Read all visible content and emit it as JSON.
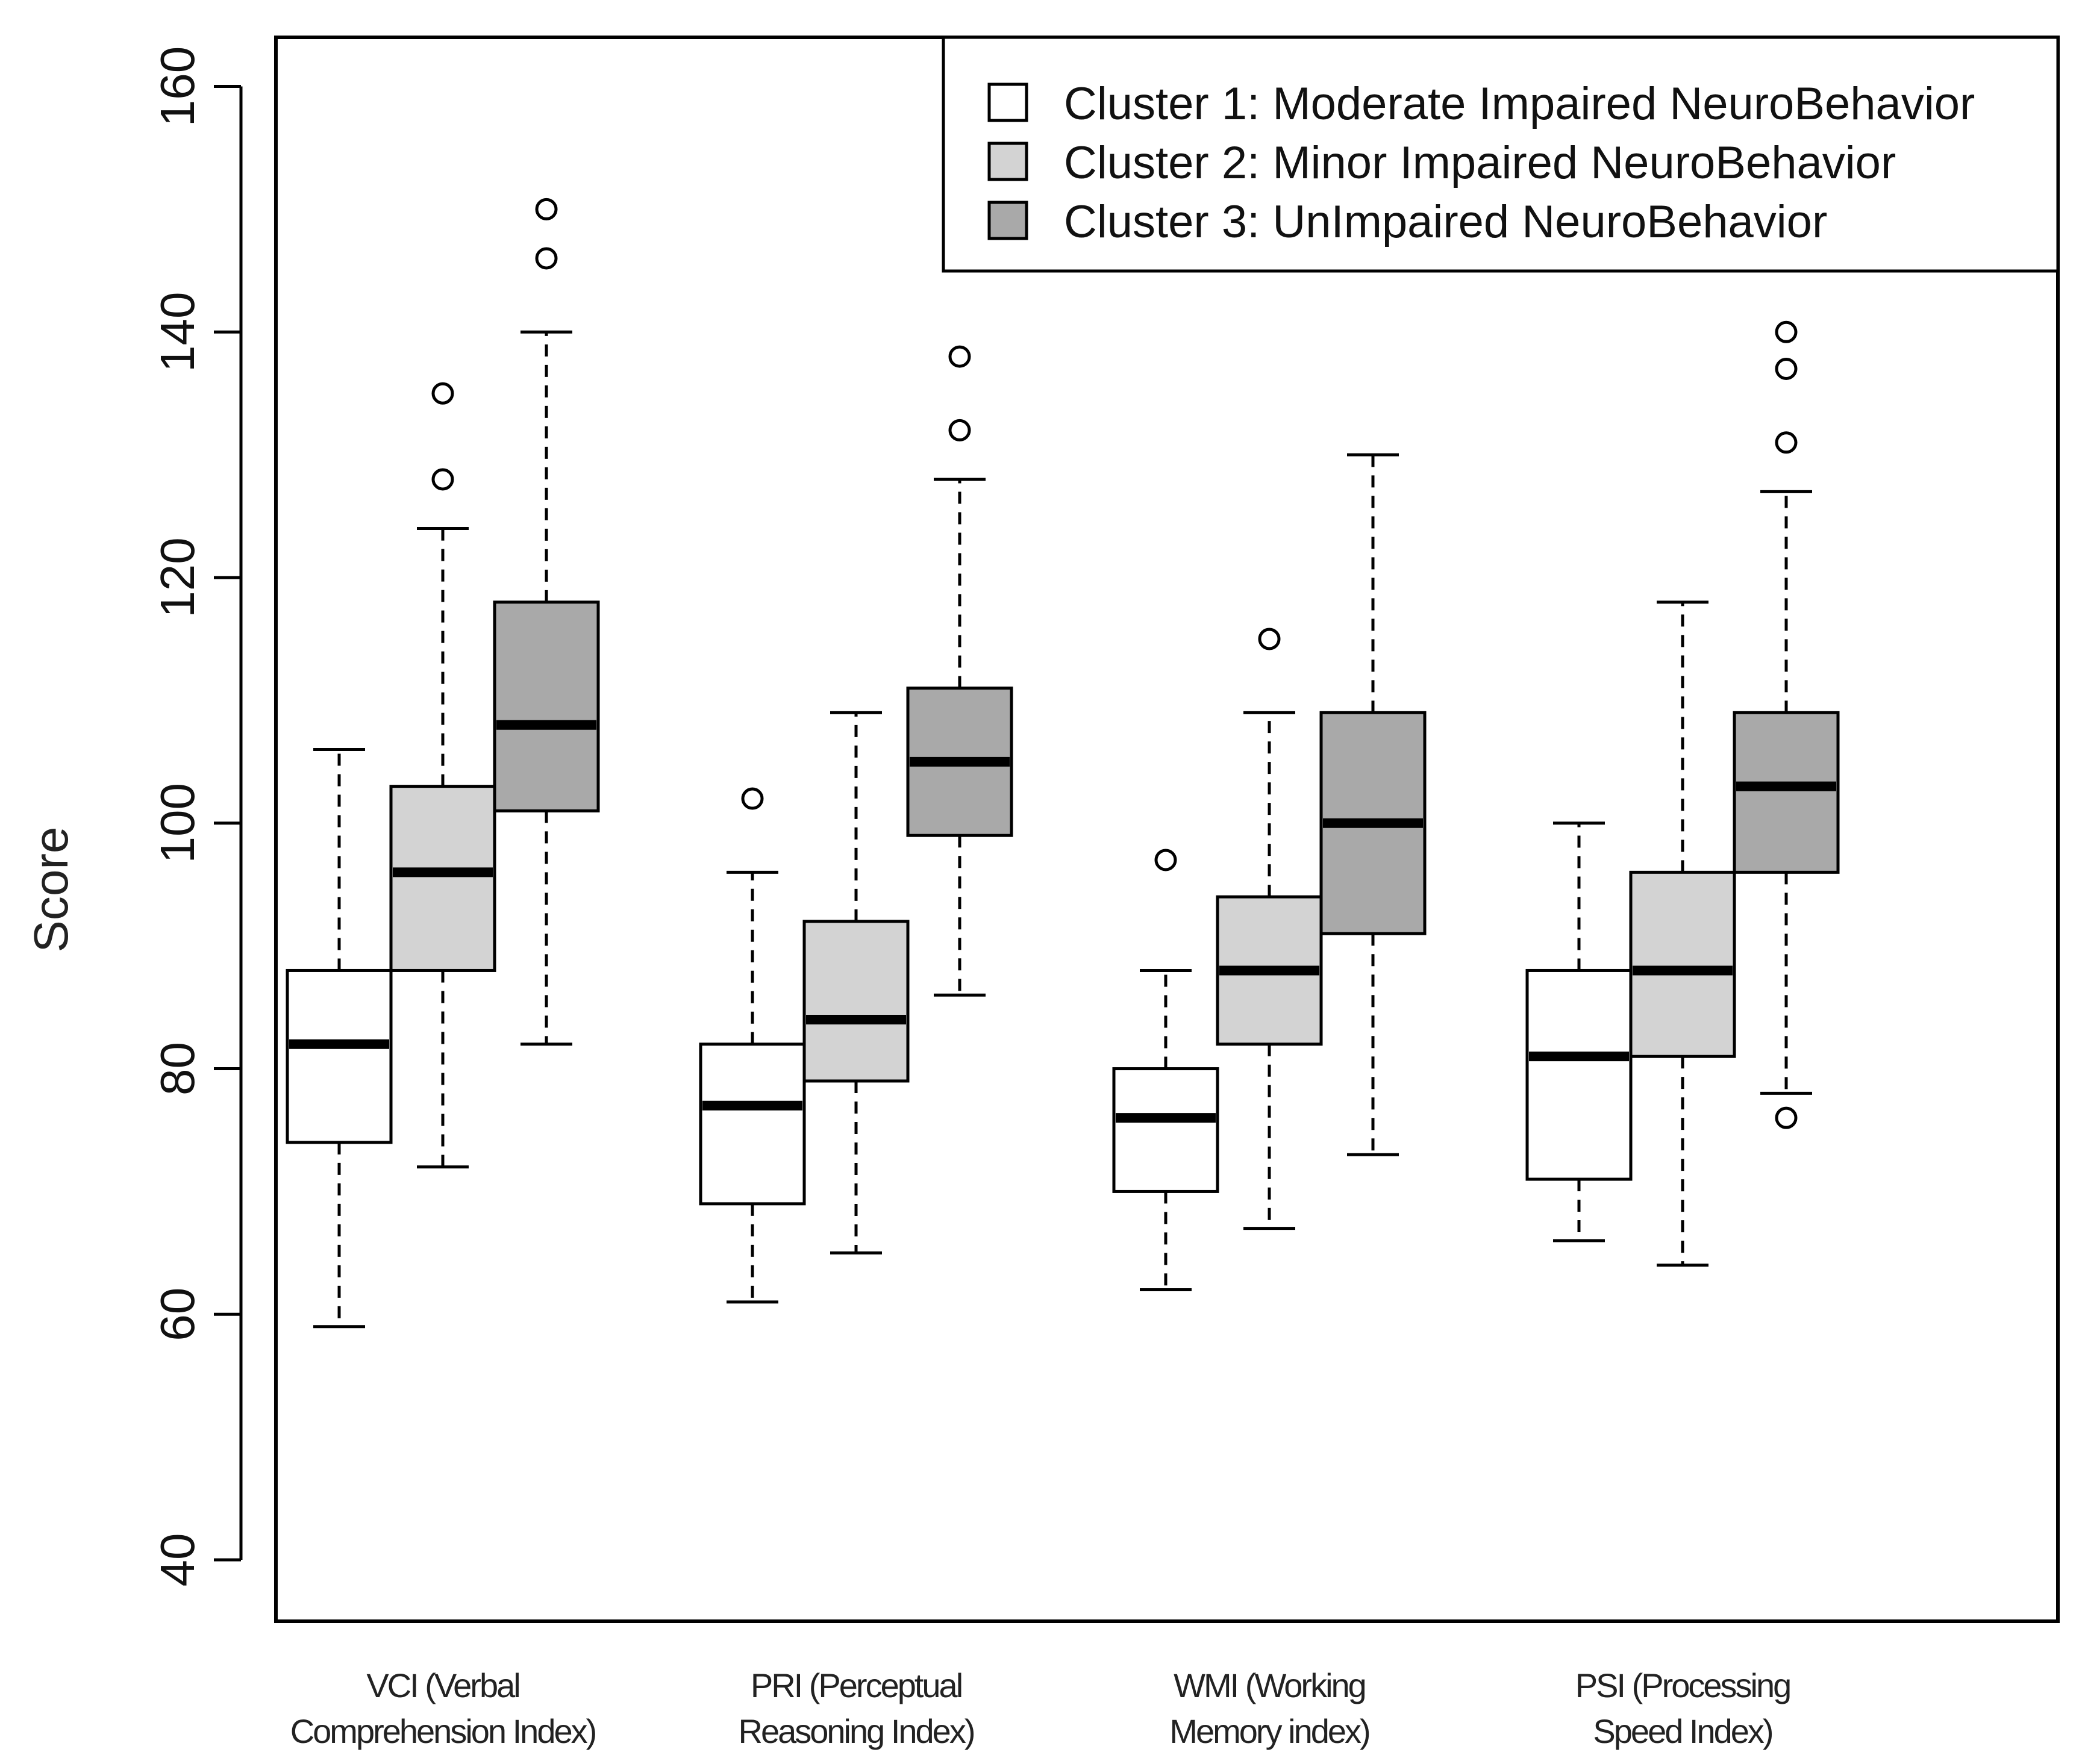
{
  "chart_data": {
    "type": "boxplot",
    "title": "",
    "xlabel": "",
    "ylabel": "Score",
    "ylim": [
      35,
      164
    ],
    "yticks": [
      40,
      60,
      80,
      100,
      120,
      140,
      160
    ],
    "grid": false,
    "legend_position": "top-right",
    "categories": [
      {
        "line1": "VCI (Verbal",
        "line2": "Comprehension Index)"
      },
      {
        "line1": "PRI (Perceptual",
        "line2": "Reasoning Index)"
      },
      {
        "line1": "WMI (Working",
        "line2": "Memory index)"
      },
      {
        "line1": "PSI (Processing",
        "line2": "Speed Index)"
      }
    ],
    "series": [
      {
        "name": "Cluster 1: Moderate Impaired NeuroBehavior",
        "color": "#ffffff",
        "boxes": [
          {
            "whisker_low": 59,
            "q1": 74,
            "median": 82,
            "q3": 88,
            "whisker_high": 106,
            "outliers": []
          },
          {
            "whisker_low": 61,
            "q1": 69,
            "median": 77,
            "q3": 82,
            "whisker_high": 96,
            "outliers": [
              102
            ]
          },
          {
            "whisker_low": 62,
            "q1": 70,
            "median": 76,
            "q3": 80,
            "whisker_high": 88,
            "outliers": [
              97
            ]
          },
          {
            "whisker_low": 66,
            "q1": 71,
            "median": 81,
            "q3": 88,
            "whisker_high": 100,
            "outliers": []
          }
        ]
      },
      {
        "name": "Cluster 2: Minor Impaired NeuroBehavior",
        "color": "#d3d3d3",
        "boxes": [
          {
            "whisker_low": 72,
            "q1": 88,
            "median": 96,
            "q3": 103,
            "whisker_high": 124,
            "outliers": [
              128,
              135
            ]
          },
          {
            "whisker_low": 65,
            "q1": 79,
            "median": 84,
            "q3": 92,
            "whisker_high": 109,
            "outliers": []
          },
          {
            "whisker_low": 67,
            "q1": 82,
            "median": 88,
            "q3": 94,
            "whisker_high": 109,
            "outliers": [
              115
            ]
          },
          {
            "whisker_low": 64,
            "q1": 81,
            "median": 88,
            "q3": 96,
            "whisker_high": 118,
            "outliers": []
          }
        ]
      },
      {
        "name": "Cluster 3: UnImpaired NeuroBehavior",
        "color": "#a9a9a9",
        "boxes": [
          {
            "whisker_low": 82,
            "q1": 101,
            "median": 108,
            "q3": 118,
            "whisker_high": 140,
            "outliers": [
              146,
              150
            ]
          },
          {
            "whisker_low": 86,
            "q1": 99,
            "median": 105,
            "q3": 111,
            "whisker_high": 128,
            "outliers": [
              132,
              138
            ]
          },
          {
            "whisker_low": 73,
            "q1": 91,
            "median": 100,
            "q3": 109,
            "whisker_high": 130,
            "outliers": []
          },
          {
            "whisker_low": 78,
            "q1": 96,
            "median": 103,
            "q3": 109,
            "whisker_high": 127,
            "outliers": [
              76,
              131,
              137,
              140
            ]
          }
        ]
      }
    ]
  }
}
